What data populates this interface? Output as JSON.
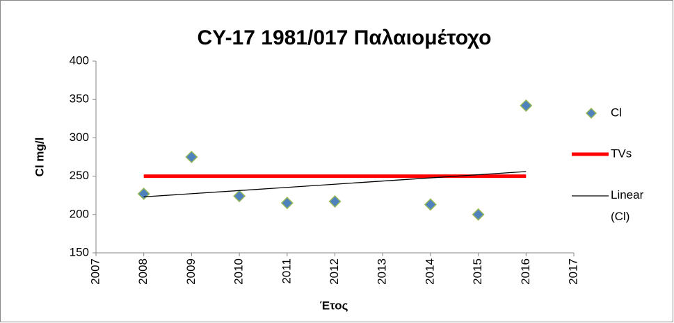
{
  "chart_data": {
    "type": "scatter",
    "title": "CY-17 1981/017 Παλαιομέτοχο",
    "x_label": "Έτος",
    "y_label": "Cl mg/l",
    "xlim": [
      2007,
      2017
    ],
    "xticks": [
      2007,
      2008,
      2009,
      2010,
      2011,
      2012,
      2013,
      2014,
      2015,
      2016,
      2017
    ],
    "ylim": [
      150,
      400
    ],
    "yticks": [
      150,
      200,
      250,
      300,
      350,
      400
    ],
    "series": [
      {
        "name": "Cl",
        "mark": "diamond",
        "color": "#4f81bd",
        "edge_color": "#9bbb59",
        "x": [
          2008,
          2009,
          2010,
          2011,
          2012,
          2014,
          2015,
          2016
        ],
        "values": [
          227,
          275,
          224,
          215,
          217,
          213,
          200,
          342
        ]
      },
      {
        "name": "TVs",
        "mark": "line",
        "color": "#ff0000",
        "x": [
          2008,
          2016
        ],
        "values": [
          250,
          250
        ]
      },
      {
        "name": "Linear (Cl)",
        "mark": "line",
        "color": "#000000",
        "x": [
          2008,
          2016
        ],
        "values": [
          223,
          256
        ]
      }
    ]
  }
}
